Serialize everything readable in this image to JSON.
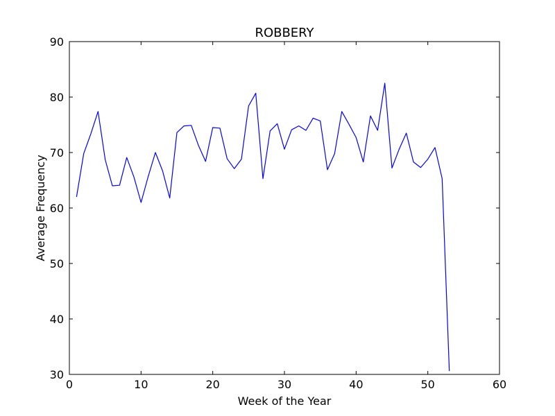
{
  "chart_data": {
    "type": "line",
    "title": "ROBBERY",
    "xlabel": "Week of the Year",
    "ylabel": "Average Frequency",
    "xlim": [
      0,
      60
    ],
    "ylim": [
      30,
      90
    ],
    "xticks": [
      0,
      10,
      20,
      30,
      40,
      50,
      60
    ],
    "yticks": [
      30,
      40,
      50,
      60,
      70,
      80,
      90
    ],
    "grid": false,
    "line_color": "#0000ff",
    "series": [
      {
        "x": [
          1,
          2,
          3,
          4,
          5,
          6,
          7,
          8,
          9,
          10,
          11,
          12,
          13,
          14,
          15,
          16,
          17,
          18,
          19,
          20,
          21,
          22,
          23,
          24,
          25,
          26,
          27,
          28,
          29,
          30,
          31,
          32,
          33,
          34,
          35,
          36,
          37,
          38,
          39,
          40,
          41,
          42,
          43,
          44,
          45,
          46,
          47,
          48,
          49,
          50,
          51,
          52,
          53
        ],
        "values": [
          62.0,
          69.8,
          73.4,
          77.4,
          68.7,
          64.0,
          64.1,
          69.1,
          65.6,
          61.0,
          65.7,
          70.0,
          66.7,
          61.8,
          73.6,
          74.8,
          74.9,
          71.3,
          68.4,
          74.5,
          74.4,
          68.9,
          67.1,
          68.8,
          78.4,
          80.7,
          65.3,
          73.9,
          75.2,
          70.6,
          74.1,
          74.8,
          74.0,
          76.2,
          75.7,
          66.9,
          69.8,
          77.4,
          75.1,
          72.7,
          68.3,
          76.6,
          74.0,
          82.5,
          67.2,
          70.6,
          73.5,
          68.3,
          67.3,
          68.8,
          70.9,
          65.3,
          30.6
        ]
      }
    ]
  }
}
